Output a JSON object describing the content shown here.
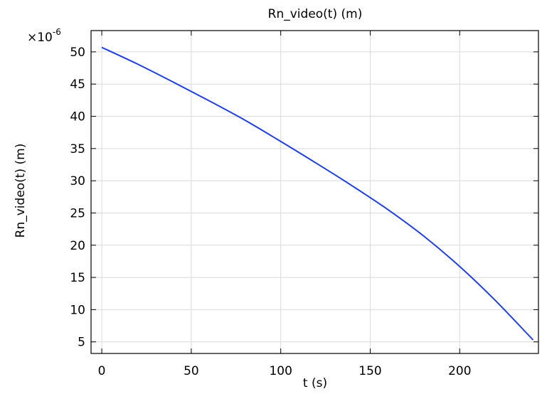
{
  "chart_data": {
    "type": "line",
    "title": "Rn_video(t) (m)",
    "xlabel": "t (s)",
    "ylabel": "Rn_video(t) (m)",
    "y_multiplier_base": "×10",
    "y_multiplier_exponent": "-6",
    "xlim": [
      -6,
      244
    ],
    "ylim": [
      3.2,
      53.3
    ],
    "x_ticks": [
      0,
      50,
      100,
      150,
      200
    ],
    "x_tick_labels": [
      "0",
      "50",
      "100",
      "150",
      "200"
    ],
    "y_ticks": [
      5,
      10,
      15,
      20,
      25,
      30,
      35,
      40,
      45,
      50
    ],
    "y_tick_labels": [
      "5",
      "10",
      "15",
      "20",
      "25",
      "30",
      "35",
      "40",
      "45",
      "50"
    ],
    "grid": true,
    "line_color": "#1f3fe0",
    "series": [
      {
        "x": [
          0,
          20,
          40,
          60,
          80,
          100,
          120,
          140,
          160,
          180,
          200,
          220,
          241
        ],
        "values": [
          50.7,
          48.1,
          45.3,
          42.4,
          39.4,
          36.1,
          32.7,
          29.2,
          25.5,
          21.4,
          16.7,
          11.4,
          5.3
        ]
      }
    ]
  }
}
